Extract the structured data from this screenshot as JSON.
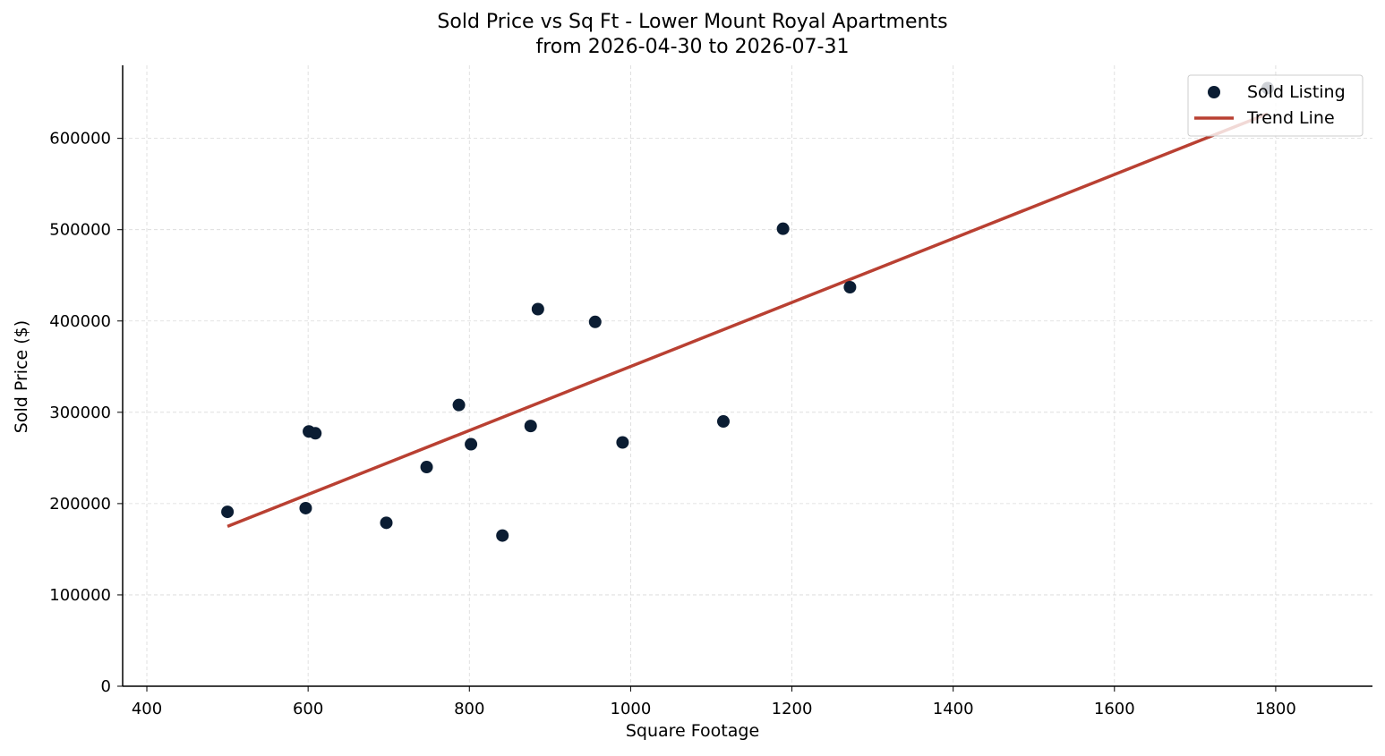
{
  "chart_data": {
    "type": "scatter",
    "title": "Sold Price vs Sq Ft - Lower Mount Royal Apartments",
    "subtitle": "from 2026-04-30 to 2026-07-31",
    "xlabel": "Square Footage",
    "ylabel": "Sold Price ($)",
    "xlim": [
      370,
      1920
    ],
    "ylim": [
      0,
      680000
    ],
    "x_ticks": [
      400,
      600,
      800,
      1000,
      1200,
      1400,
      1600,
      1800
    ],
    "y_ticks": [
      0,
      100000,
      200000,
      300000,
      400000,
      500000,
      600000
    ],
    "grid": true,
    "legend_position": "top-right",
    "series": [
      {
        "name": "Sold Listing",
        "kind": "scatter",
        "color": "#0b1d33",
        "points": [
          {
            "x": 500,
            "y": 191000
          },
          {
            "x": 597,
            "y": 195000
          },
          {
            "x": 601,
            "y": 279000
          },
          {
            "x": 609,
            "y": 277000
          },
          {
            "x": 697,
            "y": 179000
          },
          {
            "x": 747,
            "y": 240000
          },
          {
            "x": 787,
            "y": 308000
          },
          {
            "x": 802,
            "y": 265000
          },
          {
            "x": 841,
            "y": 165000
          },
          {
            "x": 876,
            "y": 285000
          },
          {
            "x": 885,
            "y": 413000
          },
          {
            "x": 956,
            "y": 399000
          },
          {
            "x": 990,
            "y": 267000
          },
          {
            "x": 1115,
            "y": 290000
          },
          {
            "x": 1189,
            "y": 501000
          },
          {
            "x": 1272,
            "y": 437000
          },
          {
            "x": 1790,
            "y": 655000
          }
        ]
      },
      {
        "name": "Trend Line",
        "kind": "line",
        "color": "#b94032",
        "points": [
          {
            "x": 500,
            "y": 175000
          },
          {
            "x": 1790,
            "y": 627000
          }
        ]
      }
    ]
  }
}
